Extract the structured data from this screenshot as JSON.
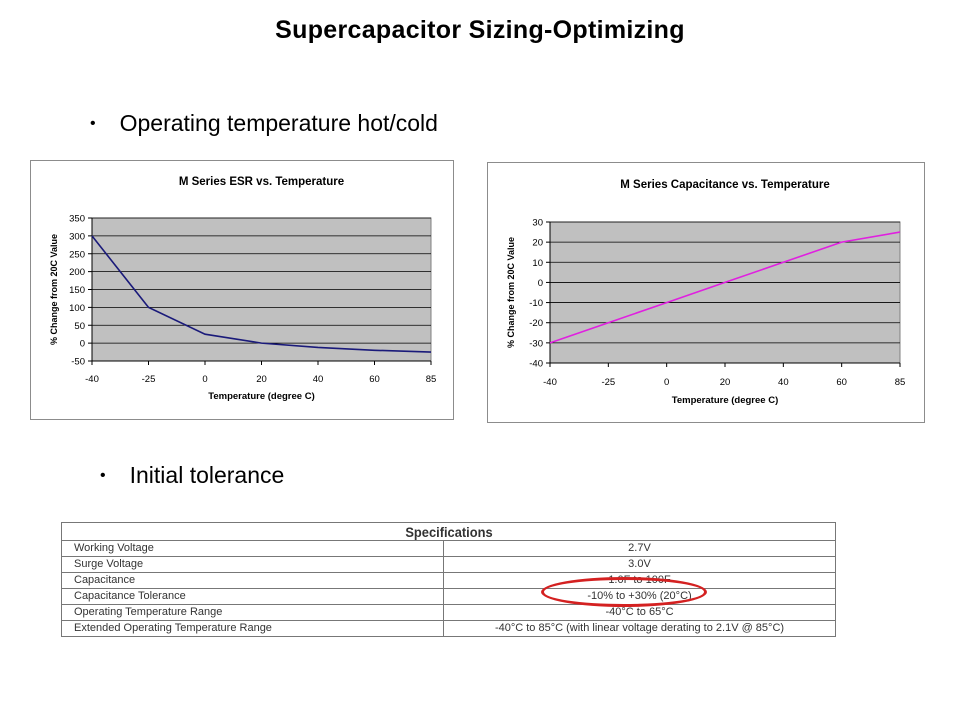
{
  "slide": {
    "title": "Supercapacitor Sizing-Optimizing",
    "bullet1": "Operating temperature hot/cold",
    "bullet2": "Initial tolerance",
    "bullet_symbol": "•"
  },
  "chart_data": [
    {
      "type": "line",
      "title": "M Series ESR vs. Temperature",
      "xlabel": "Temperature (degree C)",
      "ylabel": "% Change from 20C Value",
      "categories": [
        "-40",
        "-25",
        "0",
        "20",
        "40",
        "60",
        "85"
      ],
      "x": [
        -40,
        -25,
        0,
        20,
        40,
        60,
        85
      ],
      "series": [
        {
          "values": [
            300,
            100,
            25,
            0,
            -12,
            -20,
            -25
          ],
          "color": "#1a1a7a"
        }
      ],
      "ylim": [
        -50,
        350
      ],
      "yticks": [
        -50,
        0,
        50,
        100,
        150,
        200,
        250,
        300,
        350
      ],
      "grid": true,
      "plot_bg": "#c0c0c0"
    },
    {
      "type": "line",
      "title": "M Series Capacitance vs. Temperature",
      "xlabel": "Temperature (degree C)",
      "ylabel": "% Change from 20C Value",
      "categories": [
        "-40",
        "-25",
        "0",
        "20",
        "40",
        "60",
        "85"
      ],
      "x": [
        -40,
        -25,
        0,
        20,
        40,
        60,
        85
      ],
      "series": [
        {
          "values": [
            -30,
            -20,
            -10,
            0,
            10,
            20,
            25
          ],
          "color": "#e020e0"
        }
      ],
      "ylim": [
        -40,
        30
      ],
      "yticks": [
        -40,
        -30,
        -20,
        -10,
        0,
        10,
        20,
        30
      ],
      "grid": true,
      "plot_bg": "#c0c0c0"
    }
  ],
  "spec_table": {
    "header": "Specifications",
    "rows": [
      {
        "label": "Working Voltage",
        "value": "2.7V"
      },
      {
        "label": "Surge Voltage",
        "value": "3.0V"
      },
      {
        "label": "Capacitance",
        "value": "1.0F to 100F"
      },
      {
        "label": "Capacitance Tolerance",
        "value": "-10% to +30% (20°C)"
      },
      {
        "label": "Operating Temperature Range",
        "value": "-40°C to 65°C"
      },
      {
        "label": "Extended Operating Temperature Range",
        "value": "-40°C to 85°C (with linear voltage derating to 2.1V @ 85°C)"
      }
    ],
    "highlight_color": "#d42121"
  }
}
